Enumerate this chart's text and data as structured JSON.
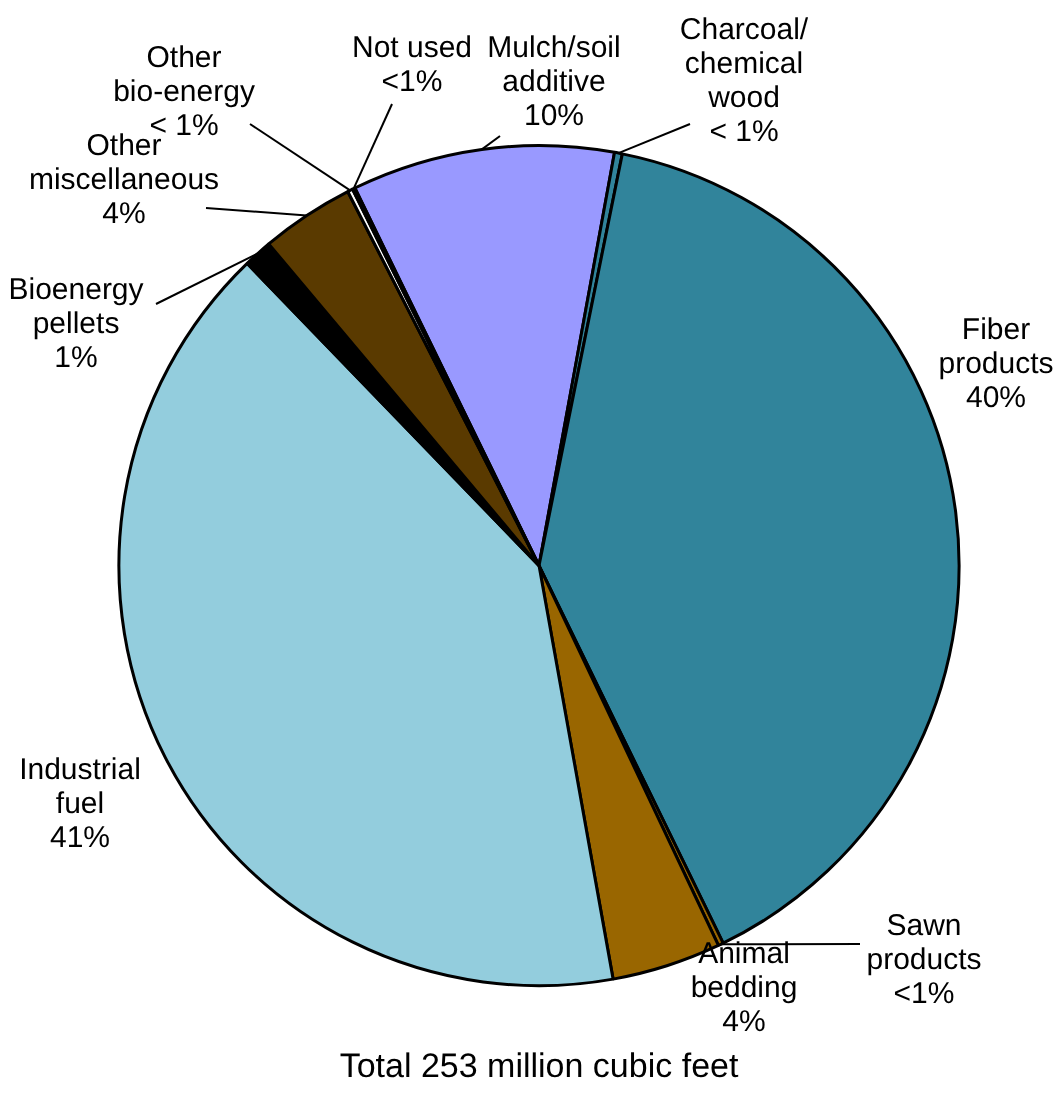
{
  "chart_data": {
    "type": "pie",
    "title": "Total 253 million cubic feet",
    "categories": [
      "Mulch/soil additive",
      "Charcoal/ chemical wood",
      "Fiber products",
      "Sawn products",
      "Animal bedding",
      "Industrial fuel",
      "Bioenergy pellets",
      "Other miscellaneous",
      "Other bio-energy",
      "Not used"
    ],
    "values": [
      10.1,
      0.3,
      39.6,
      0.2,
      4.2,
      40.6,
      1.1,
      3.6,
      0.2,
      0.1
    ],
    "value_labels": [
      "10%",
      "< 1%",
      "40%",
      "<1%",
      "4%",
      "41%",
      "1%",
      "4%",
      "< 1%",
      "<1%"
    ],
    "colors": [
      "#9999ff",
      "#31849b",
      "#31849b",
      "#996600",
      "#996600",
      "#93cddd",
      "#000000",
      "#5a3a00",
      "#ffffff",
      "#ffffff"
    ],
    "legend": false
  }
}
